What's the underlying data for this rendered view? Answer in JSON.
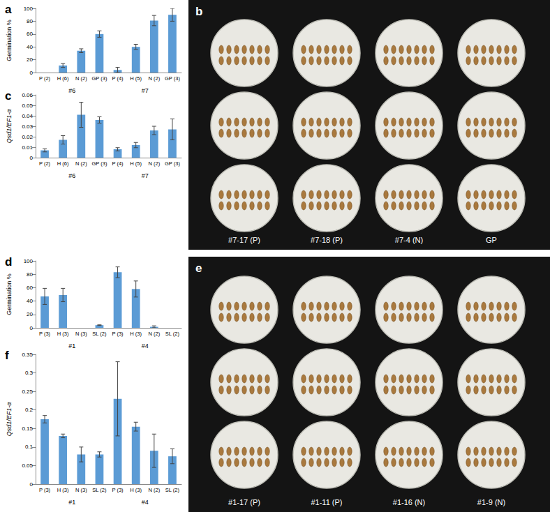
{
  "chart_data": [
    {
      "type": "bar",
      "title": "a",
      "ylabel": "Germination %",
      "categories": [
        "P (2)",
        "H (6)",
        "N (2)",
        "GP (3)",
        "P (4)",
        "H (5)",
        "N (2)",
        "GP (3)"
      ],
      "groups": [
        "#6",
        "#7"
      ],
      "values": [
        0,
        11,
        34,
        60,
        4,
        40,
        81,
        90
      ],
      "errors": [
        0,
        3,
        3,
        5,
        4,
        4,
        8,
        10
      ],
      "color": "#5b9bd5",
      "ylim": [
        0,
        100
      ],
      "yticks": [
        0,
        20,
        40,
        60,
        80,
        100
      ],
      "grid": false
    },
    {
      "type": "bar",
      "title": "c",
      "ylabel": "Qsd1/EF1-α",
      "categories": [
        "P (2)",
        "H (6)",
        "N (2)",
        "GP (3)",
        "P (4)",
        "H (5)",
        "N (2)",
        "GP (3)"
      ],
      "groups": [
        "#6",
        "#7"
      ],
      "values": [
        0.007,
        0.017,
        0.041,
        0.036,
        0.008,
        0.012,
        0.026,
        0.027
      ],
      "errors": [
        0.0015,
        0.004,
        0.012,
        0.003,
        0.0015,
        0.0025,
        0.004,
        0.01
      ],
      "color": "#5b9bd5",
      "ylim": [
        0,
        0.06
      ],
      "yticks": [
        0,
        0.01,
        0.02,
        0.03,
        0.04,
        0.05,
        0.06
      ],
      "grid": false
    },
    {
      "type": "bar",
      "title": "d",
      "ylabel": "Germination %",
      "categories": [
        "P (3)",
        "H (3)",
        "N (3)",
        "SL (2)",
        "P (3)",
        "H (3)",
        "N (2)",
        "SL (2)"
      ],
      "groups": [
        "#1",
        "#4"
      ],
      "values": [
        47,
        49,
        0,
        4,
        83,
        58,
        1.5,
        0
      ],
      "errors": [
        12,
        10,
        0,
        0.5,
        8,
        12,
        1.5,
        0
      ],
      "color": "#5b9bd5",
      "ylim": [
        0,
        100
      ],
      "yticks": [
        0,
        20,
        40,
        60,
        80,
        100
      ],
      "grid": false
    },
    {
      "type": "bar",
      "title": "f",
      "ylabel": "Qsd1/EF1-α",
      "categories": [
        "P (3)",
        "H (3)",
        "N (3)",
        "SL (2)",
        "P (3)",
        "H (3)",
        "N (2)",
        "SL (2)"
      ],
      "groups": [
        "#1",
        "#4"
      ],
      "values": [
        0.175,
        0.13,
        0.08,
        0.08,
        0.23,
        0.155,
        0.09,
        0.075
      ],
      "errors": [
        0.01,
        0.005,
        0.02,
        0.007,
        0.1,
        0.012,
        0.045,
        0.02
      ],
      "color": "#5b9bd5",
      "ylim": [
        0,
        0.35
      ],
      "yticks": [
        0,
        0.05,
        0.1,
        0.15,
        0.2,
        0.25,
        0.3,
        0.35
      ],
      "grid": false
    }
  ],
  "photo_panels": [
    {
      "title": "b",
      "captions": [
        "#7-17 (P)",
        "#7-18 (P)",
        "#7-4 (N)",
        "GP"
      ]
    },
    {
      "title": "e",
      "captions": [
        "#1-17 (P)",
        "#1-11 (P)",
        "#1-16 (N)",
        "#1-9 (N)"
      ]
    }
  ]
}
